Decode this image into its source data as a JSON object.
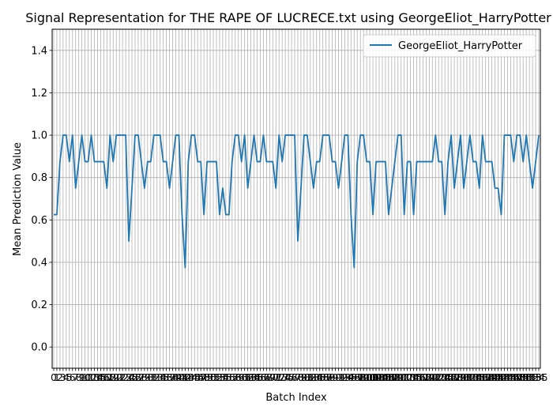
{
  "chart_data": {
    "type": "line",
    "title": "Signal Representation for THE RAPE OF LUCRECE.txt using GeorgeEliot_HarryPotter",
    "xlabel": "Batch Index",
    "ylabel": "Mean Prediction Value",
    "ylim": [
      -0.1,
      1.5
    ],
    "yticks": [
      0.0,
      0.2,
      0.4,
      0.6,
      0.8,
      1.0,
      1.2,
      1.4
    ],
    "ytick_labels": [
      "0.0",
      "0.2",
      "0.4",
      "0.6",
      "0.8",
      "1.0",
      "1.2",
      "1.4"
    ],
    "xlim": [
      -0.5,
      155.5
    ],
    "grid": true,
    "legend_position": "top-right",
    "series": [
      {
        "name": "GeorgeEliot_HarryPotter",
        "color": "#1f77b4",
        "values": [
          0.625,
          0.625,
          0.875,
          1.0,
          1.0,
          0.875,
          1.0,
          0.75,
          0.875,
          1.0,
          0.875,
          0.875,
          1.0,
          0.875,
          0.875,
          0.875,
          0.875,
          0.75,
          1.0,
          0.875,
          1.0,
          1.0,
          1.0,
          1.0,
          0.5,
          0.75,
          1.0,
          1.0,
          0.875,
          0.75,
          0.875,
          0.875,
          1.0,
          1.0,
          1.0,
          0.875,
          0.875,
          0.75,
          0.875,
          1.0,
          1.0,
          0.625,
          0.375,
          0.875,
          1.0,
          1.0,
          0.875,
          0.875,
          0.625,
          0.875,
          0.875,
          0.875,
          0.875,
          0.625,
          0.75,
          0.625,
          0.625,
          0.875,
          1.0,
          1.0,
          0.875,
          1.0,
          0.75,
          0.875,
          1.0,
          0.875,
          0.875,
          1.0,
          0.875,
          0.875,
          0.875,
          0.75,
          1.0,
          0.875,
          1.0,
          1.0,
          1.0,
          1.0,
          0.5,
          0.75,
          1.0,
          1.0,
          0.875,
          0.75,
          0.875,
          0.875,
          1.0,
          1.0,
          1.0,
          0.875,
          0.875,
          0.75,
          0.875,
          1.0,
          1.0,
          0.625,
          0.375,
          0.875,
          1.0,
          1.0,
          0.875,
          0.875,
          0.625,
          0.875,
          0.875,
          0.875,
          0.875,
          0.625,
          0.75,
          0.875,
          1.0,
          1.0,
          0.625,
          0.875,
          0.875,
          0.625,
          0.875,
          0.875,
          0.875,
          0.875,
          0.875,
          0.875,
          1.0,
          0.875,
          0.875,
          0.625,
          0.875,
          1.0,
          0.75,
          0.875,
          1.0,
          0.75,
          0.875,
          1.0,
          0.875,
          0.875,
          0.75,
          1.0,
          0.875,
          0.875,
          0.875,
          0.75,
          0.75,
          0.625,
          1.0,
          1.0,
          1.0,
          0.875,
          1.0,
          1.0,
          0.875,
          1.0,
          0.875,
          0.75,
          0.875,
          1.0
        ]
      }
    ]
  }
}
